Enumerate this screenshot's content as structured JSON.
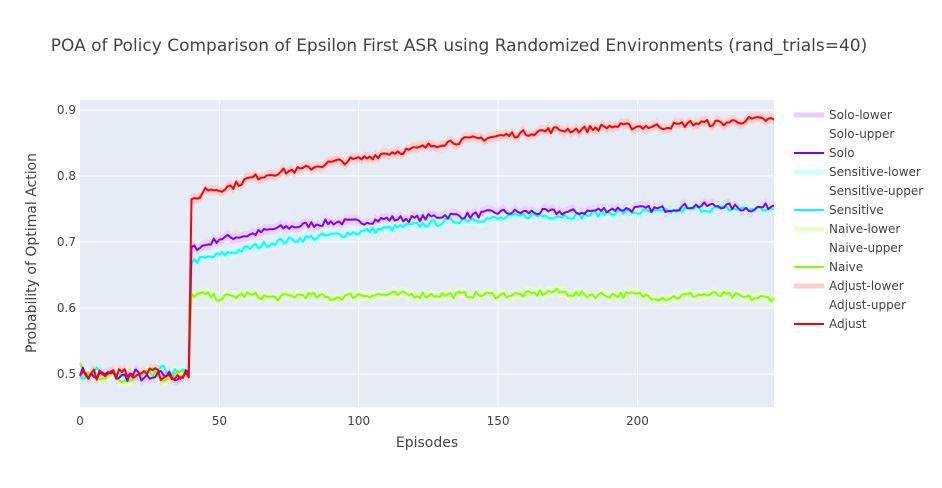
{
  "chart_data": {
    "type": "line",
    "title": "POA of Policy Comparison of Epsilon First ASR using Randomized Environments (rand_trials=40)",
    "xlabel": "Episodes",
    "ylabel": "Probability of Optimal Action",
    "xlim": [
      0,
      249
    ],
    "ylim": [
      0.45,
      0.915
    ],
    "x_ticks": [
      0,
      50,
      100,
      150,
      200
    ],
    "y_ticks": [
      0.5,
      0.6,
      0.7,
      0.8,
      0.9
    ],
    "x_tick_labels": [
      "0",
      "50",
      "100",
      "150",
      "200"
    ],
    "y_tick_labels": [
      "0.5",
      "0.6",
      "0.7",
      "0.8",
      "0.9"
    ],
    "grid": true,
    "legend_position": "right",
    "legend": [
      "Solo-lower",
      "Solo-upper",
      "Solo",
      "Sensitive-lower",
      "Sensitive-upper",
      "Sensitive",
      "Naive-lower",
      "Naive-upper",
      "Naive",
      "Adjust-lower",
      "Adjust-upper",
      "Adjust"
    ],
    "series": [
      {
        "name": "Solo",
        "color": "#7f00ff",
        "x": [
          0,
          5,
          10,
          15,
          20,
          25,
          30,
          35,
          39,
          40,
          45,
          50,
          60,
          70,
          80,
          90,
          100,
          110,
          120,
          130,
          140,
          150,
          160,
          170,
          180,
          190,
          200,
          210,
          220,
          230,
          240,
          249
        ],
        "y": [
          0.505,
          0.495,
          0.5,
          0.495,
          0.5,
          0.49,
          0.5,
          0.495,
          0.5,
          0.69,
          0.695,
          0.705,
          0.71,
          0.72,
          0.725,
          0.73,
          0.73,
          0.735,
          0.735,
          0.74,
          0.74,
          0.745,
          0.745,
          0.745,
          0.745,
          0.75,
          0.75,
          0.75,
          0.755,
          0.755,
          0.75,
          0.755
        ]
      },
      {
        "name": "Sensitive",
        "color": "#00ffff",
        "x": [
          0,
          5,
          10,
          15,
          20,
          25,
          30,
          35,
          39,
          40,
          45,
          50,
          60,
          70,
          80,
          90,
          100,
          110,
          120,
          130,
          140,
          150,
          160,
          170,
          180,
          190,
          200,
          210,
          220,
          230,
          240,
          249
        ],
        "y": [
          0.5,
          0.505,
          0.495,
          0.5,
          0.495,
          0.5,
          0.505,
          0.5,
          0.5,
          0.67,
          0.675,
          0.68,
          0.69,
          0.7,
          0.705,
          0.71,
          0.715,
          0.72,
          0.725,
          0.73,
          0.735,
          0.735,
          0.74,
          0.74,
          0.74,
          0.745,
          0.745,
          0.745,
          0.75,
          0.75,
          0.75,
          0.75
        ]
      },
      {
        "name": "Naive",
        "color": "#80ff00",
        "x": [
          0,
          5,
          10,
          15,
          20,
          25,
          30,
          35,
          39,
          40,
          45,
          50,
          60,
          70,
          80,
          90,
          100,
          110,
          120,
          130,
          140,
          150,
          160,
          170,
          180,
          190,
          200,
          210,
          220,
          230,
          240,
          249
        ],
        "y": [
          0.51,
          0.495,
          0.5,
          0.49,
          0.5,
          0.505,
          0.495,
          0.5,
          0.5,
          0.62,
          0.62,
          0.615,
          0.62,
          0.615,
          0.62,
          0.615,
          0.62,
          0.62,
          0.62,
          0.62,
          0.62,
          0.62,
          0.62,
          0.625,
          0.62,
          0.62,
          0.62,
          0.615,
          0.62,
          0.62,
          0.615,
          0.615
        ]
      },
      {
        "name": "Adjust",
        "color": "#ff0000",
        "x": [
          0,
          5,
          10,
          15,
          20,
          25,
          30,
          35,
          39,
          40,
          42,
          45,
          50,
          55,
          60,
          70,
          80,
          90,
          100,
          110,
          120,
          130,
          140,
          150,
          160,
          170,
          180,
          190,
          200,
          210,
          220,
          230,
          240,
          249
        ],
        "y": [
          0.5,
          0.5,
          0.495,
          0.505,
          0.5,
          0.51,
          0.495,
          0.5,
          0.5,
          0.76,
          0.765,
          0.78,
          0.78,
          0.785,
          0.795,
          0.805,
          0.81,
          0.82,
          0.825,
          0.835,
          0.84,
          0.85,
          0.855,
          0.86,
          0.865,
          0.87,
          0.87,
          0.875,
          0.875,
          0.875,
          0.88,
          0.88,
          0.885,
          0.885
        ]
      }
    ],
    "bands": [
      {
        "name": "Solo-lower",
        "pair": "Solo-upper",
        "series": "Solo",
        "color": "#e6ccff",
        "half_width": 0.008
      },
      {
        "name": "Sensitive-lower",
        "pair": "Sensitive-upper",
        "series": "Sensitive",
        "color": "#ccffff",
        "half_width": 0.008
      },
      {
        "name": "Naive-lower",
        "pair": "Naive-upper",
        "series": "Naive",
        "color": "#e6ffcc",
        "half_width": 0.008
      },
      {
        "name": "Adjust-lower",
        "pair": "Adjust-upper",
        "series": "Adjust",
        "color": "#ffcccc",
        "half_width": 0.008
      }
    ]
  }
}
